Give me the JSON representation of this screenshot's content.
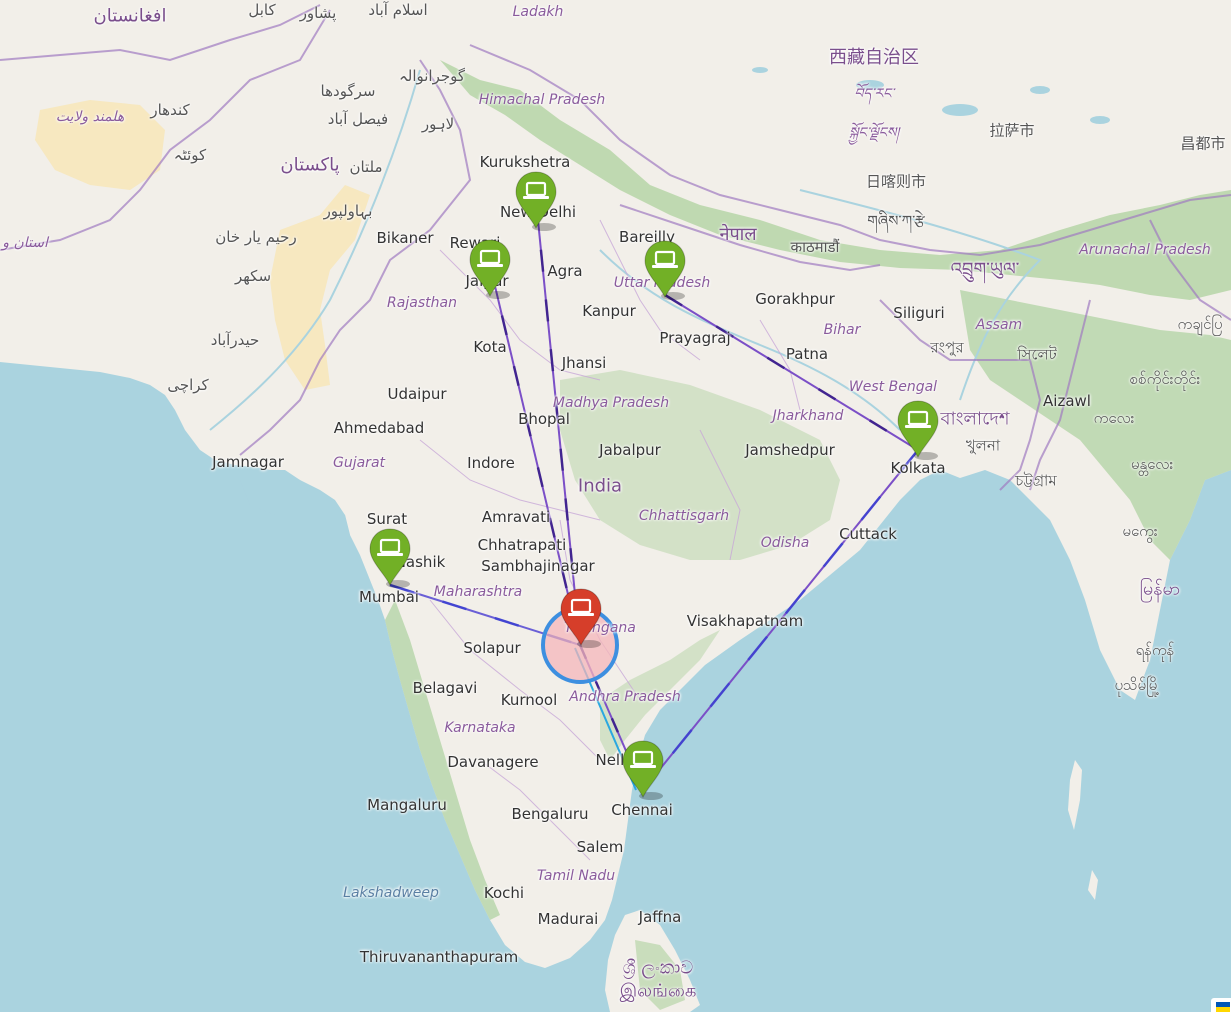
{
  "map": {
    "colors": {
      "sea": "#aad3df",
      "land": "#f2efe9",
      "forest": "#add19e",
      "desert": "#f7e6b5",
      "border": "#a07ac0",
      "link_purple": "#7b4fc7",
      "link_dark": "#3b1f8a",
      "link_cyan": "#2aa8e0",
      "marker_green": "#72b026",
      "marker_red": "#d63e2a",
      "circle_fill": "#f4b5b9",
      "circle_stroke": "#3d8fe0"
    },
    "labels": [
      {
        "id": "afghanistan",
        "text": "افغانستان",
        "kind": "country"
      },
      {
        "id": "kabul",
        "text": "کابل",
        "kind": "foreign"
      },
      {
        "id": "peshawar",
        "text": "پشاور",
        "kind": "foreign"
      },
      {
        "id": "islamabad",
        "text": "اسلام آباد",
        "kind": "foreign"
      },
      {
        "id": "ladakh",
        "text": "Ladakh",
        "kind": "region"
      },
      {
        "id": "gujranwala",
        "text": "گوجرانوالہ",
        "kind": "foreign"
      },
      {
        "id": "sargodha",
        "text": "سرگودھا",
        "kind": "foreign"
      },
      {
        "id": "faisalabad",
        "text": "فیصل آباد",
        "kind": "foreign"
      },
      {
        "id": "lahore",
        "text": "لاہور",
        "kind": "foreign"
      },
      {
        "id": "kandahar",
        "text": "کندهار",
        "kind": "foreign"
      },
      {
        "id": "helmand",
        "text": "هلمند ولایت",
        "kind": "region"
      },
      {
        "id": "quetta",
        "text": "کوئٹہ",
        "kind": "foreign"
      },
      {
        "id": "pakistan",
        "text": "پاکستان",
        "kind": "country"
      },
      {
        "id": "multan",
        "text": "ملتان",
        "kind": "foreign"
      },
      {
        "id": "bahawalpur",
        "text": "بہاولپور",
        "kind": "foreign"
      },
      {
        "id": "rahim-yar-khan",
        "text": "رحیم یار خان",
        "kind": "foreign"
      },
      {
        "id": "sukkur",
        "text": "سکھر",
        "kind": "foreign"
      },
      {
        "id": "hyderabad-pk",
        "text": "حیدرآباد",
        "kind": "foreign"
      },
      {
        "id": "karachi",
        "text": "کراچی",
        "kind": "foreign"
      },
      {
        "id": "balochistan",
        "text": "استان و بلو",
        "kind": "region"
      },
      {
        "id": "himachal",
        "text": "Himachal Pradesh",
        "kind": "region"
      },
      {
        "id": "kurukshetra",
        "text": "Kurukshetra",
        "kind": "city"
      },
      {
        "id": "new-delhi",
        "text": "New Delhi",
        "kind": "city"
      },
      {
        "id": "bikaner",
        "text": "Bikaner",
        "kind": "city"
      },
      {
        "id": "rewari",
        "text": "Rewari",
        "kind": "city"
      },
      {
        "id": "jaipur",
        "text": "Jaipur",
        "kind": "city"
      },
      {
        "id": "agra",
        "text": "Agra",
        "kind": "city"
      },
      {
        "id": "bareilly",
        "text": "Bareilly",
        "kind": "city"
      },
      {
        "id": "nepal",
        "text": "नेपाल",
        "kind": "country"
      },
      {
        "id": "kathmandu",
        "text": "काठमाडौं",
        "kind": "foreign"
      },
      {
        "id": "tibet",
        "text": "西藏自治区",
        "kind": "country"
      },
      {
        "id": "tibet-2",
        "text": "བོད་རང་",
        "kind": "region"
      },
      {
        "id": "tibet-3",
        "text": "སྐྱོང་ལྗོངས།",
        "kind": "region"
      },
      {
        "id": "lhasa",
        "text": "拉萨市",
        "kind": "foreign"
      },
      {
        "id": "shigatse",
        "text": "日喀则市",
        "kind": "foreign"
      },
      {
        "id": "shigatse-2",
        "text": "གཞིས་ཀ་རྩེ",
        "kind": "foreign"
      },
      {
        "id": "changdu",
        "text": "昌都市",
        "kind": "foreign"
      },
      {
        "id": "bhutan",
        "text": "འབྲུག་ཡུལ་",
        "kind": "country"
      },
      {
        "id": "arunachal",
        "text": "Arunachal Pradesh",
        "kind": "region"
      },
      {
        "id": "rajasthan",
        "text": "Rajasthan",
        "kind": "region"
      },
      {
        "id": "uttar",
        "text": "Uttar Pradesh",
        "kind": "region"
      },
      {
        "id": "kanpur",
        "text": "Kanpur",
        "kind": "city"
      },
      {
        "id": "gorakhpur",
        "text": "Gorakhpur",
        "kind": "city"
      },
      {
        "id": "siliguri",
        "text": "Siliguri",
        "kind": "city"
      },
      {
        "id": "kota",
        "text": "Kota",
        "kind": "city"
      },
      {
        "id": "prayagraj",
        "text": "Prayagraj",
        "kind": "city"
      },
      {
        "id": "bihar",
        "text": "Bihar",
        "kind": "region"
      },
      {
        "id": "assam",
        "text": "Assam",
        "kind": "region"
      },
      {
        "id": "rangpur",
        "text": "রংপুর",
        "kind": "foreign"
      },
      {
        "id": "sylhet",
        "text": "সিলেট",
        "kind": "foreign"
      },
      {
        "id": "patna",
        "text": "Patna",
        "kind": "city"
      },
      {
        "id": "jhansi",
        "text": "Jhansi",
        "kind": "city"
      },
      {
        "id": "udaipur",
        "text": "Udaipur",
        "kind": "city"
      },
      {
        "id": "madhya",
        "text": "Madhya Pradesh",
        "kind": "region"
      },
      {
        "id": "west-bengal",
        "text": "West Bengal",
        "kind": "region"
      },
      {
        "id": "aizawl",
        "text": "Aizawl",
        "kind": "city"
      },
      {
        "id": "myanmar-1",
        "text": "ကချင်ပြ",
        "kind": "foreign"
      },
      {
        "id": "myanmar-2",
        "text": "စစ်ကိုင်းတိုင်း",
        "kind": "foreign"
      },
      {
        "id": "ahmedabad",
        "text": "Ahmedabad",
        "kind": "city"
      },
      {
        "id": "bhopal",
        "text": "Bhopal",
        "kind": "city"
      },
      {
        "id": "jharkhand",
        "text": "Jharkhand",
        "kind": "region"
      },
      {
        "id": "bangladesh",
        "text": "বাংলাদেশ",
        "kind": "country"
      },
      {
        "id": "jamnagar",
        "text": "Jamnagar",
        "kind": "city"
      },
      {
        "id": "gujarat",
        "text": "Gujarat",
        "kind": "region"
      },
      {
        "id": "indore",
        "text": "Indore",
        "kind": "city"
      },
      {
        "id": "jabalpur",
        "text": "Jabalpur",
        "kind": "city"
      },
      {
        "id": "jamshedpur",
        "text": "Jamshedpur",
        "kind": "city"
      },
      {
        "id": "khulna",
        "text": "খুলনা",
        "kind": "foreign"
      },
      {
        "id": "kalay",
        "text": "ကလေး",
        "kind": "foreign"
      },
      {
        "id": "kolkata",
        "text": "Kolkata",
        "kind": "city"
      },
      {
        "id": "chittagong",
        "text": "চট্টগ্রাম",
        "kind": "foreign"
      },
      {
        "id": "mandalay",
        "text": "မန္တလေး",
        "kind": "foreign"
      },
      {
        "id": "india",
        "text": "India",
        "kind": "country"
      },
      {
        "id": "amravati",
        "text": "Amravati",
        "kind": "city"
      },
      {
        "id": "chhattisgarh",
        "text": "Chhattisgarh",
        "kind": "region"
      },
      {
        "id": "surat",
        "text": "Surat",
        "kind": "city"
      },
      {
        "id": "chhatrapati",
        "text": "Chhatrapati",
        "kind": "city"
      },
      {
        "id": "sambhajinagar",
        "text": "Sambhajinagar",
        "kind": "city"
      },
      {
        "id": "odisha",
        "text": "Odisha",
        "kind": "region"
      },
      {
        "id": "cuttack",
        "text": "Cuttack",
        "kind": "city"
      },
      {
        "id": "magway",
        "text": "မကွေး",
        "kind": "foreign"
      },
      {
        "id": "nashik",
        "text": "Nashik",
        "kind": "city"
      },
      {
        "id": "maharashtra",
        "text": "Maharashtra",
        "kind": "region"
      },
      {
        "id": "mumbai",
        "text": "Mumbai",
        "kind": "city"
      },
      {
        "id": "myanmar",
        "text": "မြန်မာ",
        "kind": "country"
      },
      {
        "id": "telangana",
        "text": "Telangana",
        "kind": "region"
      },
      {
        "id": "visakhapatnam",
        "text": "Visakhapatnam",
        "kind": "city"
      },
      {
        "id": "solapur",
        "text": "Solapur",
        "kind": "city"
      },
      {
        "id": "yangon",
        "text": "ရန်ကုန်",
        "kind": "foreign"
      },
      {
        "id": "belagavi",
        "text": "Belagavi",
        "kind": "city"
      },
      {
        "id": "andhra",
        "text": "Andhra Pradesh",
        "kind": "region"
      },
      {
        "id": "pathein",
        "text": "ပုသိမ်မြို့",
        "kind": "foreign"
      },
      {
        "id": "kurnool",
        "text": "Kurnool",
        "kind": "city"
      },
      {
        "id": "karnataka",
        "text": "Karnataka",
        "kind": "region"
      },
      {
        "id": "nellore",
        "text": "Nellore",
        "kind": "city"
      },
      {
        "id": "davanagere",
        "text": "Davanagere",
        "kind": "city"
      },
      {
        "id": "chennai",
        "text": "Chennai",
        "kind": "city"
      },
      {
        "id": "mangaluru",
        "text": "Mangaluru",
        "kind": "city"
      },
      {
        "id": "bengaluru",
        "text": "Bengaluru",
        "kind": "city"
      },
      {
        "id": "salem",
        "text": "Salem",
        "kind": "city"
      },
      {
        "id": "tamil-nadu",
        "text": "Tamil Nadu",
        "kind": "region"
      },
      {
        "id": "lakshadweep",
        "text": "Lakshadweep",
        "kind": "water"
      },
      {
        "id": "kochi",
        "text": "Kochi",
        "kind": "city"
      },
      {
        "id": "madurai",
        "text": "Madurai",
        "kind": "city"
      },
      {
        "id": "jaffna",
        "text": "Jaffna",
        "kind": "city"
      },
      {
        "id": "thiruvananthapuram",
        "text": "Thiruvananthapuram",
        "kind": "city"
      },
      {
        "id": "sri-lanka-1",
        "text": "ශ්‍රී ලංකාව",
        "kind": "country"
      },
      {
        "id": "sri-lanka-2",
        "text": "இலங்கை",
        "kind": "country"
      }
    ],
    "markers": [
      {
        "id": "new-delhi",
        "color": "green",
        "icon": "laptop-icon"
      },
      {
        "id": "jaipur",
        "color": "green",
        "icon": "laptop-icon"
      },
      {
        "id": "uttar-pradesh",
        "color": "green",
        "icon": "laptop-icon"
      },
      {
        "id": "kolkata",
        "color": "green",
        "icon": "laptop-icon"
      },
      {
        "id": "mumbai",
        "color": "green",
        "icon": "laptop-icon"
      },
      {
        "id": "chennai",
        "color": "green",
        "icon": "laptop-icon"
      },
      {
        "id": "hyderabad",
        "color": "red",
        "icon": "laptop-icon"
      }
    ],
    "attribution_flag": {
      "icon": "ukraine-flag-icon",
      "colors": [
        "#0057b7",
        "#ffd700"
      ]
    }
  }
}
